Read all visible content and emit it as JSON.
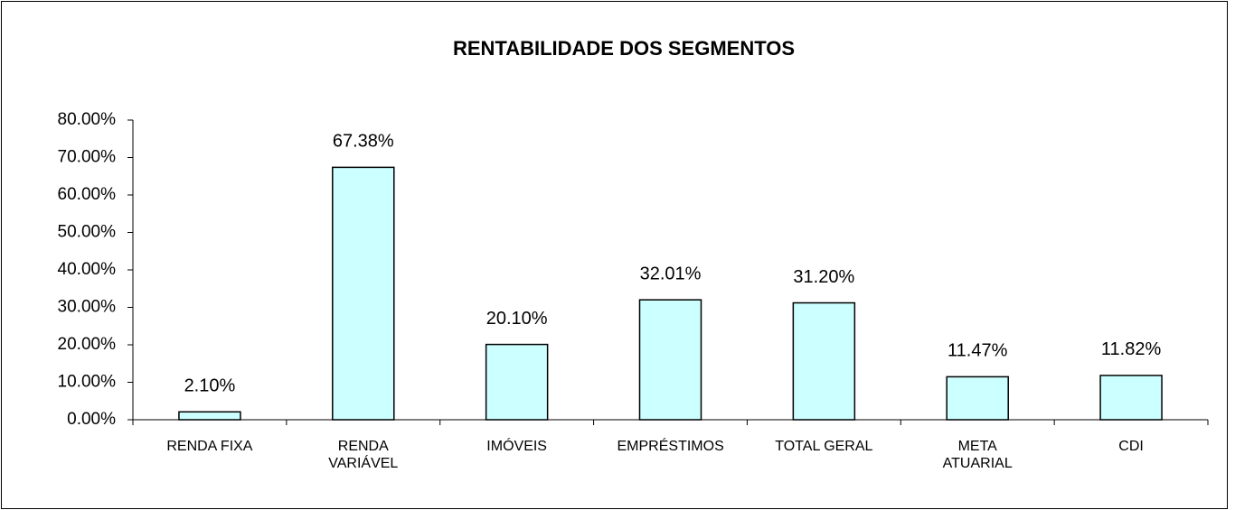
{
  "chart_data": {
    "type": "bar",
    "title": "RENTABILIDADE DOS SEGMENTOS",
    "categories": [
      "RENDA FIXA",
      "RENDA VARIÁVEL",
      "IMÓVEIS",
      "EMPRÉSTIMOS",
      "TOTAL GERAL",
      "META ATUARIAL",
      "CDI"
    ],
    "values": [
      2.1,
      67.38,
      20.1,
      32.01,
      31.2,
      11.47,
      11.82
    ],
    "value_labels": [
      "2.10%",
      "67.38%",
      "20.10%",
      "32.01%",
      "31.20%",
      "11.47%",
      "11.82%"
    ],
    "color": "#ccffff",
    "ylim": [
      0,
      80
    ],
    "yticks": [
      {
        "value": 0,
        "label": "0.00%"
      },
      {
        "value": 10,
        "label": "10.00%"
      },
      {
        "value": 20,
        "label": "20.00%"
      },
      {
        "value": 30,
        "label": "30.00%"
      },
      {
        "value": 40,
        "label": "40.00%"
      },
      {
        "value": 50,
        "label": "50.00%"
      },
      {
        "value": 60,
        "label": "60.00%"
      },
      {
        "value": 70,
        "label": "70.00%"
      },
      {
        "value": 80,
        "label": "80.00%"
      }
    ],
    "grid": false
  }
}
